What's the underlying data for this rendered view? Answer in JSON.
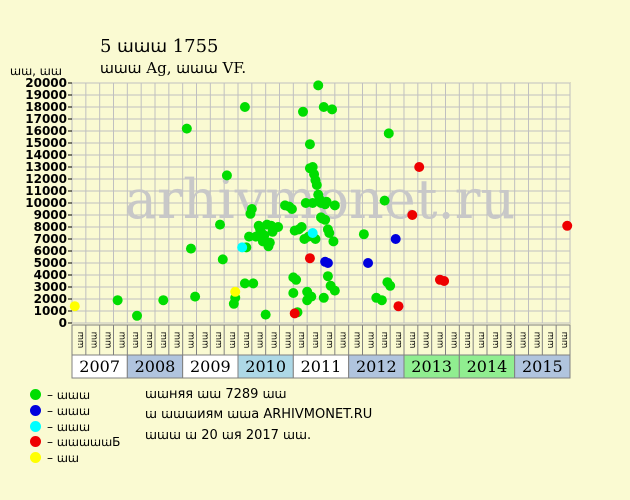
{
  "chart_data": {
    "type": "scatter",
    "title": "5 ꭐꭐꭐ 1755",
    "subtitle": "ꭐꭐꭐ Ag, ꭐꭐꭐ VF.",
    "ylabel": "ꭐꭐ, ꭐꭐ",
    "ylim": [
      0,
      20000
    ],
    "yticks": [
      0,
      1000,
      2000,
      3000,
      4000,
      5000,
      6000,
      7000,
      8000,
      9000,
      10000,
      11000,
      12000,
      13000,
      14000,
      15000,
      16000,
      17000,
      18000,
      19000,
      20000
    ],
    "grid": true,
    "x_unit": "quarter index (0 = Q1 2007)",
    "xlim": [
      0,
      36
    ],
    "quarter_labels": [
      "ꭐꭐ",
      "ꭐꭐ",
      "ꭐꭐ",
      "ꭐꭐ"
    ],
    "years": [
      {
        "label": "2007",
        "color": "#ffffff"
      },
      {
        "label": "2008",
        "color": "#b0c4de"
      },
      {
        "label": "2009",
        "color": "#ffffff"
      },
      {
        "label": "2010",
        "color": "#add8e6"
      },
      {
        "label": "2011",
        "color": "#ffffff"
      },
      {
        "label": "2012",
        "color": "#b0c4de"
      },
      {
        "label": "2013",
        "color": "#90ee90"
      },
      {
        "label": "2014",
        "color": "#90ee90"
      },
      {
        "label": "2015",
        "color": "#b0c4de"
      }
    ],
    "series": [
      {
        "name": "ꭐꭐꭐ",
        "color": "#00dd00",
        "points": [
          [
            3.3,
            1900
          ],
          [
            4.7,
            600
          ],
          [
            6.6,
            1900
          ],
          [
            8.3,
            16200
          ],
          [
            8.6,
            6200
          ],
          [
            8.9,
            2200
          ],
          [
            10.7,
            8200
          ],
          [
            10.9,
            5300
          ],
          [
            11.2,
            12300
          ],
          [
            11.7,
            1600
          ],
          [
            11.8,
            2100
          ],
          [
            12.5,
            18000
          ],
          [
            12.5,
            3300
          ],
          [
            12.6,
            6300
          ],
          [
            12.8,
            7200
          ],
          [
            12.9,
            9100
          ],
          [
            13.0,
            9500
          ],
          [
            13.1,
            3300
          ],
          [
            13.3,
            7200
          ],
          [
            13.5,
            8100
          ],
          [
            13.6,
            7800
          ],
          [
            13.7,
            7500
          ],
          [
            13.8,
            6800
          ],
          [
            13.9,
            7300
          ],
          [
            14.0,
            700
          ],
          [
            14.1,
            8200
          ],
          [
            14.2,
            6400
          ],
          [
            14.3,
            6700
          ],
          [
            14.4,
            8100
          ],
          [
            14.5,
            7600
          ],
          [
            14.9,
            8000
          ],
          [
            15.4,
            9800
          ],
          [
            15.7,
            9700
          ],
          [
            15.9,
            9500
          ],
          [
            16.0,
            2500
          ],
          [
            16.0,
            3800
          ],
          [
            16.1,
            7700
          ],
          [
            16.2,
            3600
          ],
          [
            16.3,
            900
          ],
          [
            16.4,
            7800
          ],
          [
            16.6,
            8000
          ],
          [
            16.7,
            17600
          ],
          [
            16.8,
            7000
          ],
          [
            16.9,
            10000
          ],
          [
            17.0,
            1900
          ],
          [
            17.0,
            2600
          ],
          [
            17.1,
            7200
          ],
          [
            17.2,
            14900
          ],
          [
            17.2,
            12900
          ],
          [
            17.3,
            2200
          ],
          [
            17.4,
            13000
          ],
          [
            17.4,
            10000
          ],
          [
            17.5,
            12400
          ],
          [
            17.6,
            11900
          ],
          [
            17.6,
            7000
          ],
          [
            17.7,
            11500
          ],
          [
            17.8,
            10700
          ],
          [
            17.8,
            19800
          ],
          [
            17.9,
            10300
          ],
          [
            18.0,
            10000
          ],
          [
            18.0,
            8800
          ],
          [
            18.1,
            8700
          ],
          [
            18.2,
            18000
          ],
          [
            18.2,
            2100
          ],
          [
            18.3,
            9900
          ],
          [
            18.3,
            8600
          ],
          [
            18.4,
            10100
          ],
          [
            18.5,
            3900
          ],
          [
            18.5,
            7800
          ],
          [
            18.6,
            7500
          ],
          [
            18.7,
            3100
          ],
          [
            18.8,
            17800
          ],
          [
            18.9,
            6800
          ],
          [
            19.0,
            2700
          ],
          [
            19.0,
            9800
          ],
          [
            21.1,
            7400
          ],
          [
            22.0,
            2100
          ],
          [
            22.4,
            1900
          ],
          [
            22.6,
            10200
          ],
          [
            22.8,
            3400
          ],
          [
            22.9,
            15800
          ],
          [
            23.0,
            3100
          ]
        ]
      },
      {
        "name": "ꭐꭐꭐ",
        "color": "#0000dd",
        "points": [
          [
            18.3,
            5100
          ],
          [
            18.5,
            5000
          ],
          [
            21.4,
            5000
          ],
          [
            23.4,
            7000
          ]
        ]
      },
      {
        "name": "ꭐꭐꭐ",
        "color": "#00ffff",
        "points": [
          [
            12.3,
            6300
          ],
          [
            17.4,
            7500
          ]
        ]
      },
      {
        "name": "ꭐꭐꭐꭐꭐБ",
        "color": "#ee0000",
        "points": [
          [
            16.1,
            800
          ],
          [
            17.2,
            5400
          ],
          [
            23.6,
            1400
          ],
          [
            24.6,
            9000
          ],
          [
            25.1,
            13000
          ],
          [
            26.6,
            3600
          ],
          [
            26.9,
            3500
          ],
          [
            35.8,
            8100
          ]
        ]
      },
      {
        "name": "ꭐꭐ",
        "color": "#ffff00",
        "points": [
          [
            0.2,
            1400
          ],
          [
            11.8,
            2600
          ]
        ]
      }
    ]
  },
  "legend": {
    "items": [
      {
        "label": "– ꭐꭐꭐ",
        "color": "#00dd00"
      },
      {
        "label": "– ꭐꭐꭐ",
        "color": "#0000dd"
      },
      {
        "label": "– ꭐꭐꭐ",
        "color": "#00ffff"
      },
      {
        "label": "– ꭐꭐꭐꭐꭐБ",
        "color": "#ee0000"
      },
      {
        "label": "– ꭐꭐ",
        "color": "#ffff00"
      }
    ]
  },
  "info": {
    "line1": "ꭐꭐняя ꭐꭐ 7289 ꭐꭐ",
    "line2": "ꭐ ꭐꭐꭐиям ꭐꭐа ARHIVMONET.RU",
    "line3": "ꭐꭐꭐ ꭐ 20 ꭐя 2017 ꭐꭐ."
  },
  "watermark": "arhivmonet.ru"
}
